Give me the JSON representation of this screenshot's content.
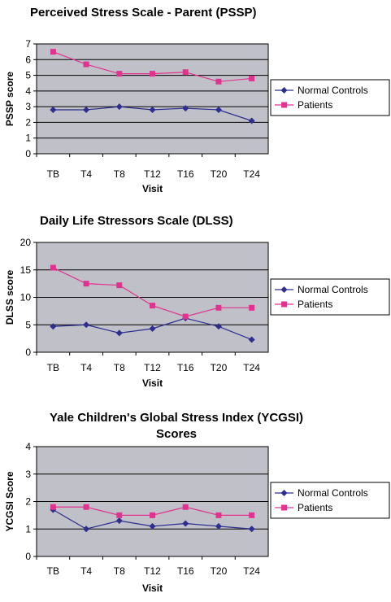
{
  "chart_data": [
    {
      "type": "line",
      "title": "Perceived Stress Scale - Parent (PSSP)",
      "title_lines": [
        "Perceived Stress Scale - Parent (PSSP)"
      ],
      "xlabel": "Visit",
      "ylabel": "PSSP score",
      "categories": [
        "TB",
        "T4",
        "T8",
        "T12",
        "T16",
        "T20",
        "T24"
      ],
      "ylim": [
        0,
        7
      ],
      "yticks": [
        "0",
        "1",
        "2",
        "3",
        "4",
        "5",
        "6",
        "7"
      ],
      "grid": true,
      "legend": "right",
      "series": [
        {
          "name": "Normal Controls",
          "color": "#2e2e8f",
          "marker": "diamond",
          "values": [
            2.8,
            2.8,
            3.0,
            2.8,
            2.9,
            2.8,
            2.1
          ]
        },
        {
          "name": "Patients",
          "color": "#e0338f",
          "marker": "square",
          "values": [
            6.5,
            5.7,
            5.1,
            5.1,
            5.2,
            4.6,
            4.8
          ]
        }
      ]
    },
    {
      "type": "line",
      "title": "Daily Life Stressors Scale (DLSS)",
      "title_lines": [
        "Daily Life Stressors Scale (DLSS)"
      ],
      "xlabel": "Visit",
      "ylabel": "DLSS score",
      "categories": [
        "TB",
        "T4",
        "T8",
        "T12",
        "T16",
        "T20",
        "T24"
      ],
      "ylim": [
        0,
        20
      ],
      "yticks": [
        "0",
        "5",
        "10",
        "15",
        "20"
      ],
      "grid": true,
      "legend": "right",
      "series": [
        {
          "name": "Normal Controls",
          "color": "#2e2e8f",
          "marker": "diamond",
          "values": [
            4.7,
            5.0,
            3.5,
            4.3,
            6.2,
            4.7,
            2.3
          ]
        },
        {
          "name": "Patients",
          "color": "#e0338f",
          "marker": "square",
          "values": [
            15.4,
            12.5,
            12.2,
            8.5,
            6.5,
            8.1,
            8.1
          ]
        }
      ]
    },
    {
      "type": "line",
      "title": "Yale Children's Global Stress Index (YCGSI) Scores",
      "title_lines": [
        "Yale Children's Global Stress Index (YCGSI)",
        "Scores"
      ],
      "xlabel": "Visit",
      "ylabel": "YCGSI Score",
      "categories": [
        "TB",
        "T4",
        "T8",
        "T12",
        "T16",
        "T20",
        "T24"
      ],
      "ylim": [
        0,
        4
      ],
      "yticks": [
        "0",
        "1",
        "2",
        "3",
        "4"
      ],
      "grid": true,
      "legend": "right",
      "series": [
        {
          "name": "Normal Controls",
          "color": "#2e2e8f",
          "marker": "diamond",
          "values": [
            1.7,
            1.0,
            1.3,
            1.1,
            1.2,
            1.1,
            1.0
          ]
        },
        {
          "name": "Patients",
          "color": "#e0338f",
          "marker": "square",
          "values": [
            1.8,
            1.8,
            1.5,
            1.5,
            1.8,
            1.5,
            1.5
          ]
        }
      ]
    }
  ],
  "style": {
    "plot_background": "#c0c0c8",
    "gridline_color": "#000000"
  }
}
